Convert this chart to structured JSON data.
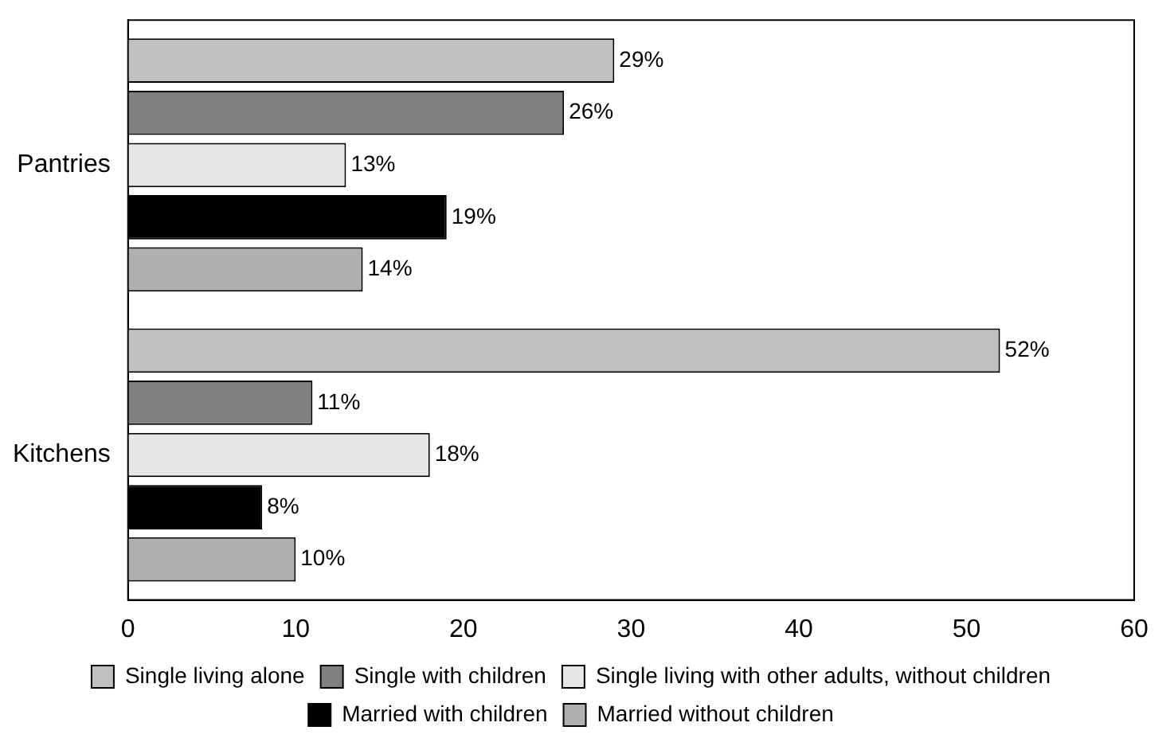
{
  "chart_data": {
    "type": "bar",
    "orientation": "horizontal",
    "categories": [
      "Pantries",
      "Kitchens"
    ],
    "series": [
      {
        "name": "Single living alone",
        "color": "#c0c0c0",
        "values": [
          29,
          52
        ],
        "value_labels": [
          "29%",
          "52%"
        ]
      },
      {
        "name": "Single with children",
        "color": "#808080",
        "values": [
          26,
          11
        ],
        "value_labels": [
          "26%",
          "11%"
        ]
      },
      {
        "name": "Single living with other adults, without children",
        "color": "#e6e6e6",
        "values": [
          13,
          18
        ],
        "value_labels": [
          "13%",
          "18%"
        ]
      },
      {
        "name": "Married with children",
        "color": "#000000",
        "values": [
          19,
          8
        ],
        "value_labels": [
          "19%",
          "8%"
        ]
      },
      {
        "name": "Married without children",
        "color": "#b0b0b0",
        "values": [
          14,
          10
        ],
        "value_labels": [
          "14%",
          "10%"
        ]
      }
    ],
    "xlim": [
      0,
      60
    ],
    "xticks": [
      0,
      10,
      20,
      30,
      40,
      50,
      60
    ],
    "grid": false,
    "legend": "bottom"
  }
}
